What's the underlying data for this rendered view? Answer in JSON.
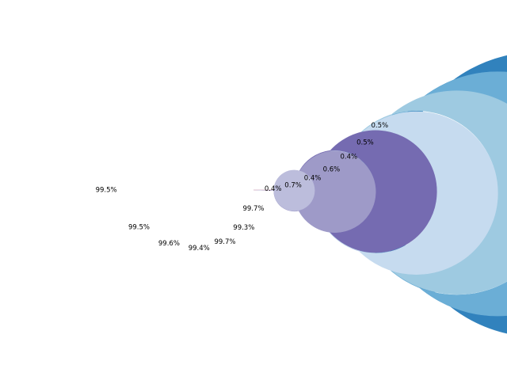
{
  "chart_data": {
    "type": "pie",
    "variant": "nested-donut",
    "title": "",
    "start_angle_deg": 0,
    "direction": "counterclockwise",
    "rings": [
      {
        "values": [
          0.4,
          99.7
        ],
        "labels": [
          "0.4%",
          "99.7%"
        ],
        "colors": [
          "#ff8080",
          "#bcbddc"
        ]
      },
      {
        "values": [
          0.7,
          99.3
        ],
        "labels": [
          "0.7%",
          "99.3%"
        ],
        "colors": [
          "#ff8080",
          "#9e9ac8"
        ]
      },
      {
        "values": [
          0.4,
          99.7
        ],
        "labels": [
          "0.4%",
          "99.7%"
        ],
        "colors": [
          "#ff8080",
          "#756bb1"
        ]
      },
      {
        "values": [
          0.6,
          99.4
        ],
        "labels": [
          "0.6%",
          "99.4%"
        ],
        "colors": [
          "#ff8080",
          "#c6dbef"
        ]
      },
      {
        "values": [
          0.4,
          99.6
        ],
        "labels": [
          "0.4%",
          "99.6%"
        ],
        "colors": [
          "#ff8080",
          "#9ecae1"
        ]
      },
      {
        "values": [
          0.5,
          99.5
        ],
        "labels": [
          "0.5%",
          "99.5%"
        ],
        "colors": [
          "#ff8080",
          "#6baed6"
        ]
      },
      {
        "values": [
          0.5,
          99.5
        ],
        "labels": [
          "0.5%",
          "99.5%"
        ],
        "colors": [
          "#ff8080",
          "#3182bd"
        ]
      }
    ]
  }
}
